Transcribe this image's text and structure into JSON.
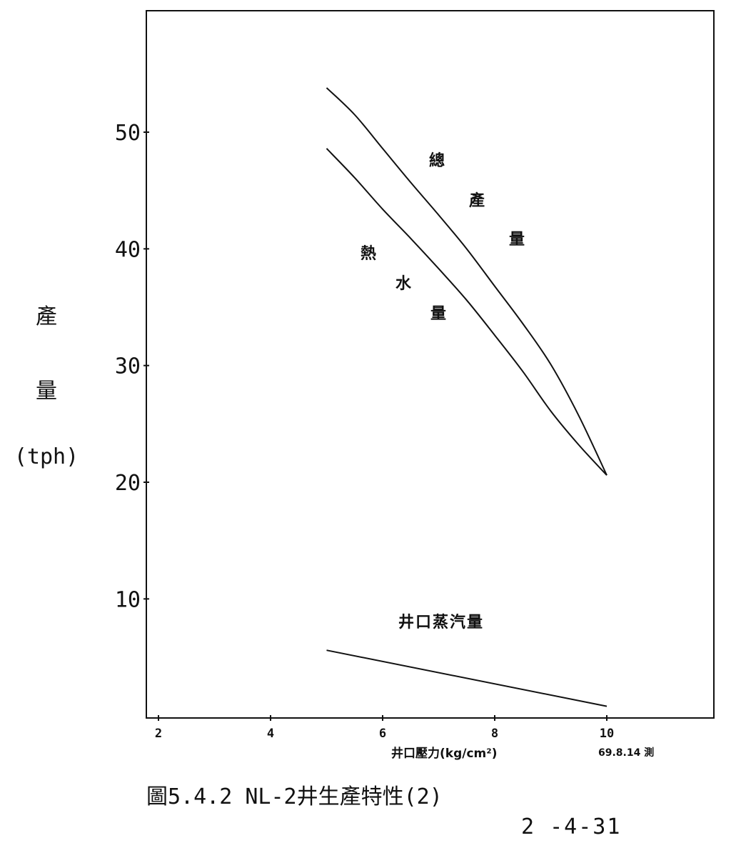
{
  "chart_data": {
    "type": "line",
    "ylabel_lines": [
      "產",
      "量",
      "(tph)"
    ],
    "xlabel": "井口壓力(kg/cm²)",
    "xlim": [
      1.8,
      12.2
    ],
    "ylim": [
      0,
      60
    ],
    "x_ticks": [
      2,
      4,
      6,
      8,
      10
    ],
    "y_ticks": [
      10,
      20,
      30,
      40,
      50
    ],
    "series": [
      {
        "name": "總產量",
        "label_chars": [
          "總",
          "產",
          "量"
        ],
        "x": [
          5.0,
          5.5,
          6.0,
          6.5,
          7.0,
          7.5,
          8.0,
          8.5,
          9.0,
          9.5,
          10.0
        ],
        "y": [
          53.8,
          51.5,
          48.6,
          45.7,
          42.9,
          40.0,
          36.8,
          33.6,
          30.1,
          25.7,
          20.6
        ]
      },
      {
        "name": "熱水量",
        "label_chars": [
          "熱",
          "水",
          "量"
        ],
        "x": [
          5.0,
          5.5,
          6.0,
          6.5,
          7.0,
          7.5,
          8.0,
          8.5,
          9.0,
          9.5,
          10.0
        ],
        "y": [
          48.6,
          46.1,
          43.4,
          40.9,
          38.3,
          35.6,
          32.6,
          29.5,
          26.1,
          23.2,
          20.6
        ]
      },
      {
        "name": "井口蒸汽量",
        "x": [
          5.0,
          10.0
        ],
        "y": [
          5.6,
          0.8
        ]
      }
    ]
  },
  "annotations": {
    "date_note": "69.8.14 測"
  },
  "caption": "圖5.4.2 NL-2井生產特性(2)",
  "page_number": "2 -4-31"
}
